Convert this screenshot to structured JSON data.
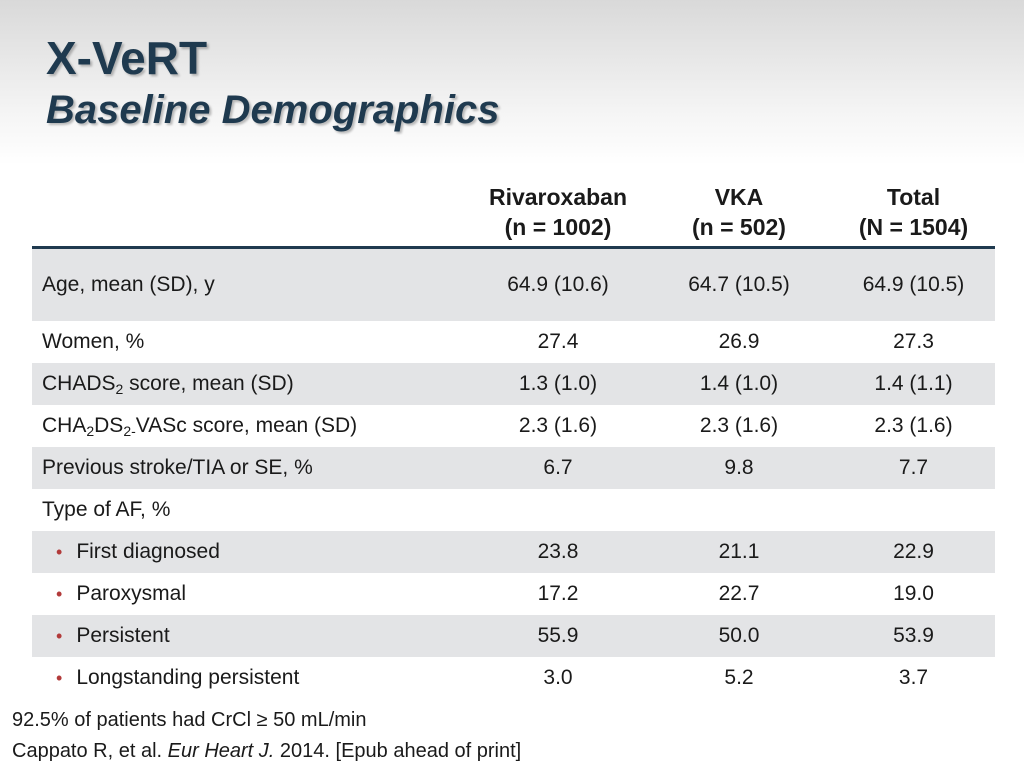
{
  "slide": {
    "title": "X-VeRT",
    "subtitle": "Baseline Demographics"
  },
  "table": {
    "headers": [
      {
        "line1": "",
        "line2": ""
      },
      {
        "line1": "Rivaroxaban",
        "line2": "(n = 1002)"
      },
      {
        "line1": "VKA",
        "line2": "(n = 502)"
      },
      {
        "line1": "Total",
        "line2": "(N = 1504)"
      }
    ],
    "rows": {
      "age": {
        "label": "Age, mean (SD), y",
        "values": [
          "64.9 (10.6)",
          "64.7 (10.5)",
          "64.9 (10.5)"
        ]
      },
      "women": {
        "label": "Women, %",
        "values": [
          "27.4",
          "26.9",
          "27.3"
        ]
      },
      "chads2": {
        "label_pre": "CHADS",
        "label_sub": "2",
        "label_post": " score, mean (SD)",
        "values": [
          "1.3 (1.0)",
          "1.4 (1.0)",
          "1.4 (1.1)"
        ]
      },
      "cha2ds2": {
        "p1": "CHA",
        "s1": "2",
        "p2": "DS",
        "s2": "2-",
        "p3": "VASc score, mean (SD)",
        "values": [
          "2.3 (1.6)",
          "2.3 (1.6)",
          "2.3 (1.6)"
        ]
      },
      "stroke": {
        "label": "Previous stroke/TIA or SE, %",
        "values": [
          "6.7",
          "9.8",
          "7.7"
        ]
      },
      "af_type": {
        "label": "Type of AF, %"
      },
      "first": {
        "label": "First diagnosed",
        "values": [
          "23.8",
          "21.1",
          "22.9"
        ]
      },
      "parox": {
        "label": "Paroxysmal",
        "values": [
          "17.2",
          "22.7",
          "19.0"
        ]
      },
      "persist": {
        "label": "Persistent",
        "values": [
          "55.9",
          "50.0",
          "53.9"
        ]
      },
      "longstand": {
        "label": "Longstanding persistent",
        "values": [
          "3.0",
          "5.2",
          "3.7"
        ]
      }
    },
    "bullet_glyph": "•"
  },
  "footnotes": {
    "note": "92.5% of patients had CrCl ≥ 50 mL/min",
    "citation_pre": "Cappato R, et al. ",
    "citation_journal": "Eur Heart J.",
    "citation_post": " 2014. [Epub ahead of print]"
  },
  "colors": {
    "title": "#1f3a4f",
    "header_rule": "#1f3a4f",
    "row_shade": "#e3e4e6",
    "bullet": "#b23a3a"
  }
}
